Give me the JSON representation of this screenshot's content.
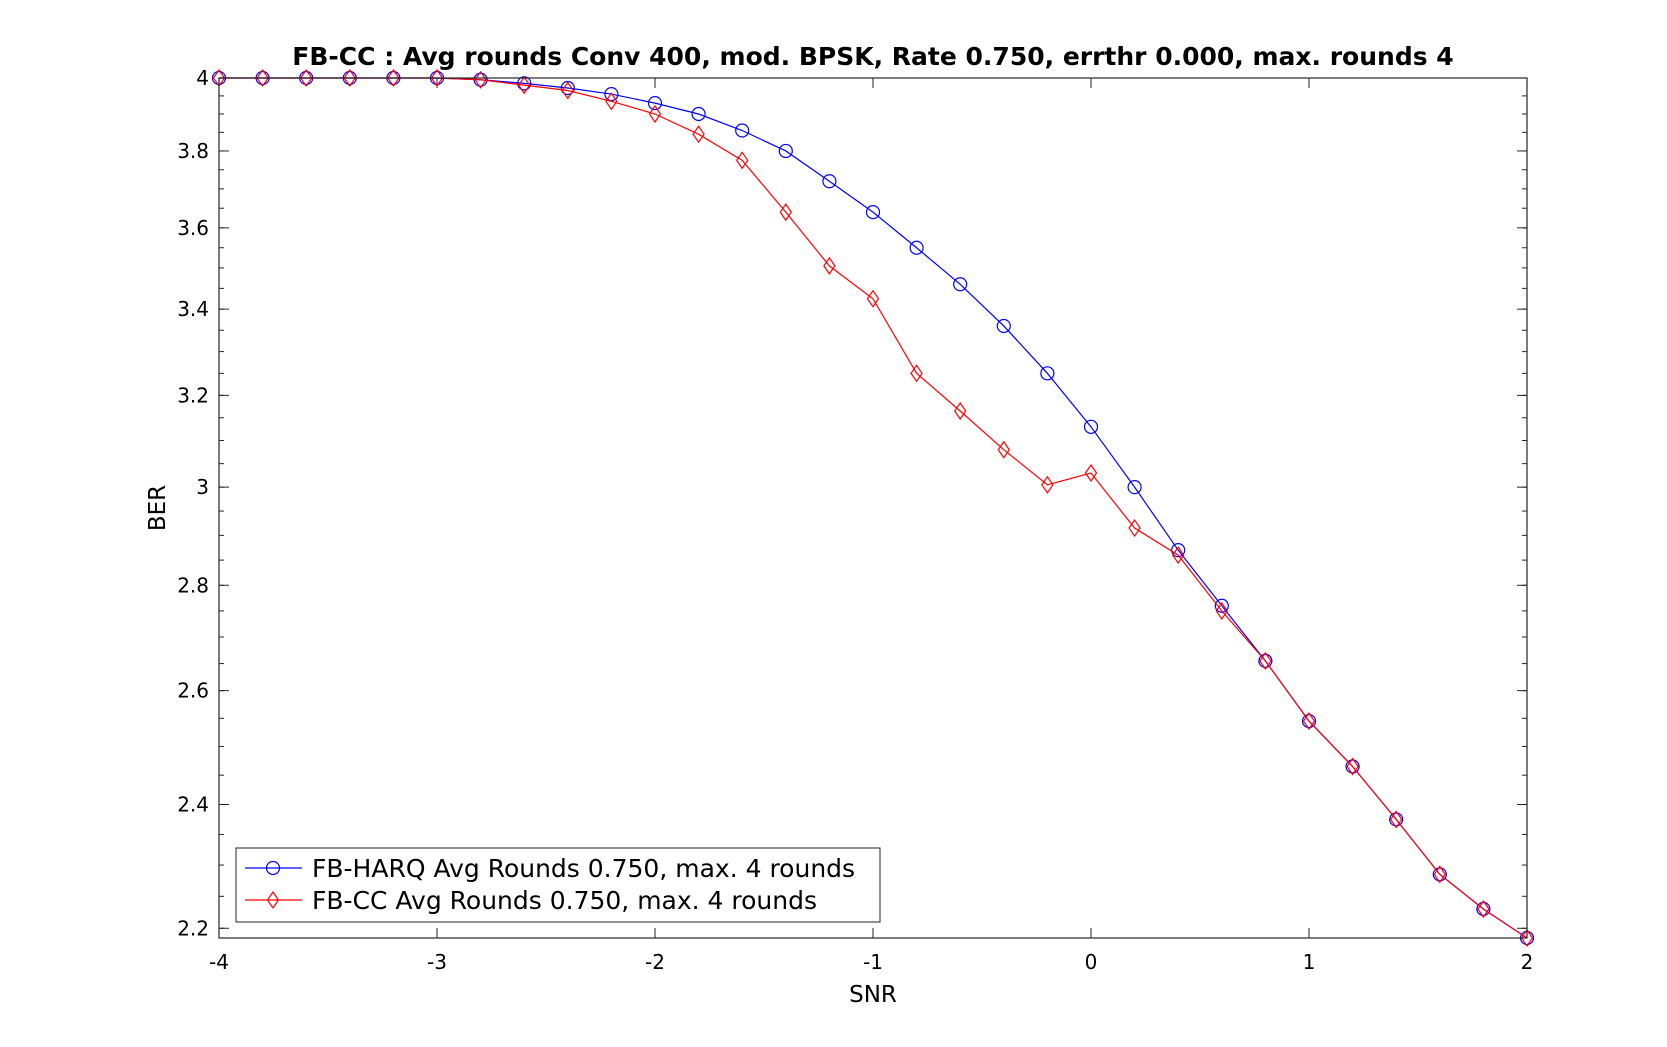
{
  "chart_data": {
    "type": "line",
    "title": "FB-CC : Avg rounds Conv 400, mod. BPSK, Rate 0.750, errthr 0.000, max. rounds 4",
    "xlabel": "SNR",
    "ylabel": "BER",
    "xlim": [
      -4,
      2
    ],
    "ylim": [
      2.185,
      4
    ],
    "yscale": "log",
    "grid": false,
    "legend_location": "bottom-left",
    "x_ticks": [
      "-4",
      "-3",
      "-2",
      "-1",
      "0",
      "1",
      "2"
    ],
    "y_ticks": [
      "2.2",
      "2.4",
      "2.6",
      "2.8",
      "3",
      "3.2",
      "3.4",
      "3.6",
      "3.8",
      "4"
    ],
    "x": [
      -4,
      -3.8,
      -3.6,
      -3.4,
      -3.2,
      -3,
      -2.8,
      -2.6,
      -2.4,
      -2.2,
      -2,
      -1.8,
      -1.6,
      -1.4,
      -1.2,
      -1,
      -0.8,
      -0.6,
      -0.4,
      -0.2,
      0,
      0.2,
      0.4,
      0.6,
      0.8,
      1,
      1.2,
      1.4,
      1.6,
      1.8,
      2
    ],
    "series": [
      {
        "name": "FB-HARQ Avg Rounds 0.750, max. 4 rounds",
        "color": "#0000ff",
        "marker": "circle",
        "values": [
          4,
          4,
          4,
          4,
          4,
          4,
          3.995,
          3.985,
          3.972,
          3.955,
          3.93,
          3.9,
          3.855,
          3.8,
          3.72,
          3.64,
          3.55,
          3.46,
          3.36,
          3.25,
          3.13,
          3,
          2.87,
          2.76,
          2.655,
          2.545,
          2.465,
          2.375,
          2.285,
          2.23,
          2.185
        ]
      },
      {
        "name": "FB-CC Avg Rounds 0.750, max. 4 rounds",
        "color": "#ff0000",
        "marker": "diamond",
        "values": [
          4,
          4,
          4,
          4,
          4,
          4,
          3.995,
          3.98,
          3.965,
          3.935,
          3.9,
          3.845,
          3.775,
          3.64,
          3.505,
          3.425,
          3.25,
          3.165,
          3.08,
          3.005,
          3.03,
          2.915,
          2.86,
          2.75,
          2.655,
          2.545,
          2.465,
          2.375,
          2.285,
          2.23,
          2.185
        ]
      }
    ]
  }
}
